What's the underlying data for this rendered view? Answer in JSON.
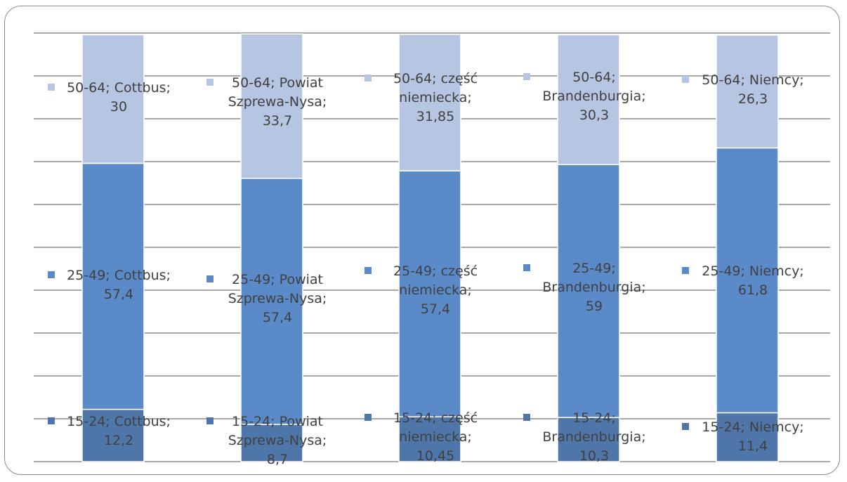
{
  "chart_data": {
    "type": "bar",
    "stacked": true,
    "percent_stacked": true,
    "categories": [
      "Cottbus",
      "Powiat Szprewa-Nysa",
      "część niemiecka",
      "Brandenburgia",
      "Niemcy"
    ],
    "series": [
      {
        "name": "15-24",
        "color": "#4f76a8",
        "values": [
          12.2,
          8.7,
          10.45,
          10.3,
          11.4
        ],
        "labels": [
          [
            "15-24; Cottbus;",
            "12,2"
          ],
          [
            "15-24; Powiat",
            "Szprewa-Nysa;",
            "8,7"
          ],
          [
            "15-24; część",
            "niemiecka;",
            "10,45"
          ],
          [
            "15-24;",
            "Brandenburgia;",
            "10,3"
          ],
          [
            "15-24; Niemcy;",
            "11,4"
          ]
        ]
      },
      {
        "name": "25-49",
        "color": "#5b8ac9",
        "values": [
          57.4,
          57.4,
          57.4,
          59,
          61.8
        ],
        "labels": [
          [
            "25-49; Cottbus;",
            "57,4"
          ],
          [
            "25-49; Powiat",
            "Szprewa-Nysa;",
            "57,4"
          ],
          [
            "25-49; część",
            "niemiecka;",
            "57,4"
          ],
          [
            "25-49;",
            "Brandenburgia;",
            "59"
          ],
          [
            "25-49; Niemcy;",
            "61,8"
          ]
        ]
      },
      {
        "name": "50-64",
        "color": "#b6c5e2",
        "values": [
          30,
          33.7,
          31.85,
          30.3,
          26.3
        ],
        "labels": [
          [
            "50-64; Cottbus;",
            "30"
          ],
          [
            "50-64; Powiat",
            "Szprewa-Nysa;",
            "33,7"
          ],
          [
            "50-64; część",
            "niemiecka;",
            "31,85"
          ],
          [
            "50-64;",
            "Brandenburgia;",
            "30,3"
          ],
          [
            "50-64; Niemcy;",
            "26,3"
          ]
        ]
      }
    ],
    "ylim": [
      0,
      100
    ],
    "grid": true,
    "gridline_count": 11,
    "tick_labels_visible": false,
    "legend": "none"
  }
}
